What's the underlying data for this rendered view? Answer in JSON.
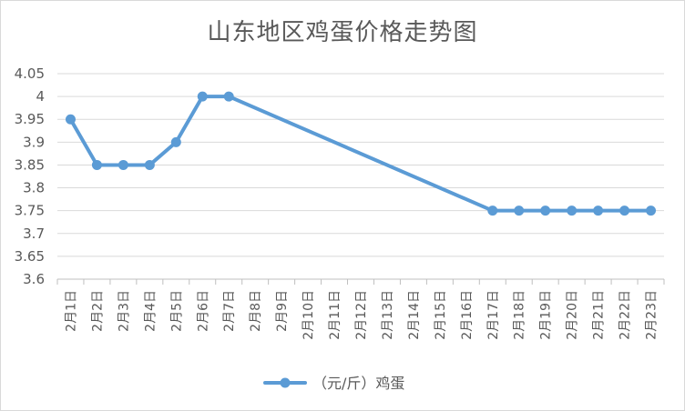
{
  "chart_data": {
    "type": "line",
    "title": "山东地区鸡蛋价格走势图",
    "xlabel": "",
    "ylabel": "",
    "categories": [
      "2月1日",
      "2月2日",
      "2月3日",
      "2月4日",
      "2月5日",
      "2月6日",
      "2月7日",
      "2月8日",
      "2月9日",
      "2月10日",
      "2月11日",
      "2月12日",
      "2月13日",
      "2月14日",
      "2月15日",
      "2月16日",
      "2月17日",
      "2月18日",
      "2月19日",
      "2月20日",
      "2月21日",
      "2月22日",
      "2月23日"
    ],
    "y_ticks": [
      "3.6",
      "3.65",
      "3.7",
      "3.75",
      "3.8",
      "3.85",
      "3.9",
      "3.95",
      "4",
      "4.05"
    ],
    "ylim": [
      3.6,
      4.05
    ],
    "grid": "horizontal",
    "legend_position": "bottom",
    "series": [
      {
        "name": "（元/斤）鸡蛋",
        "color": "#5b9bd5",
        "points": [
          {
            "x": "2月1日",
            "y": 3.95
          },
          {
            "x": "2月2日",
            "y": 3.85
          },
          {
            "x": "2月3日",
            "y": 3.85
          },
          {
            "x": "2月4日",
            "y": 3.85
          },
          {
            "x": "2月5日",
            "y": 3.9
          },
          {
            "x": "2月6日",
            "y": 4.0
          },
          {
            "x": "2月7日",
            "y": 4.0
          },
          {
            "x": "2月17日",
            "y": 3.75
          },
          {
            "x": "2月18日",
            "y": 3.75
          },
          {
            "x": "2月19日",
            "y": 3.75
          },
          {
            "x": "2月20日",
            "y": 3.75
          },
          {
            "x": "2月21日",
            "y": 3.75
          },
          {
            "x": "2月22日",
            "y": 3.75
          },
          {
            "x": "2月23日",
            "y": 3.75
          }
        ]
      }
    ]
  }
}
